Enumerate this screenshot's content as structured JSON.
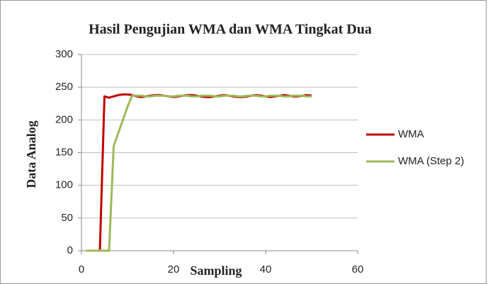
{
  "chart_data": {
    "type": "line",
    "title": "Hasil Pengujian WMA dan WMA Tingkat Dua",
    "x_label": "Sampling",
    "y_label": "Data Analog",
    "x": [
      1,
      2,
      3,
      4,
      5,
      6,
      7,
      8,
      9,
      10,
      11,
      12,
      13,
      14,
      15,
      16,
      17,
      18,
      19,
      20,
      21,
      22,
      23,
      24,
      25,
      26,
      27,
      28,
      29,
      30,
      31,
      32,
      33,
      34,
      35,
      36,
      37,
      38,
      39,
      40,
      41,
      42,
      43,
      44,
      45,
      46,
      47,
      48,
      49,
      50
    ],
    "series": [
      {
        "name": "WMA",
        "color": "#c00000",
        "values": [
          0,
          0,
          0,
          0,
          236,
          234,
          236,
          238,
          239,
          239,
          238,
          236,
          235,
          236,
          237,
          238,
          238,
          237,
          236,
          235,
          236,
          237,
          238,
          238,
          237,
          236,
          235,
          235,
          236,
          237,
          238,
          237,
          236,
          235,
          235,
          236,
          237,
          238,
          237,
          236,
          235,
          236,
          237,
          238,
          237,
          236,
          236,
          237,
          238,
          237
        ]
      },
      {
        "name": "WMA (Step 2)",
        "color": "#9bbb59",
        "values": [
          0,
          0,
          0,
          0,
          0,
          0,
          160,
          180,
          200,
          220,
          237,
          237,
          237,
          236,
          236,
          237,
          237,
          237,
          236,
          236,
          237,
          237,
          237,
          236,
          236,
          237,
          237,
          237,
          236,
          236,
          237,
          237,
          237,
          236,
          236,
          237,
          237,
          237,
          236,
          236,
          237,
          237,
          237,
          236,
          236,
          237,
          237,
          237,
          236,
          236
        ]
      }
    ],
    "xlim": [
      0,
      60
    ],
    "xticks": [
      0,
      20,
      40,
      60
    ],
    "ylim": [
      0,
      300
    ],
    "yticks": [
      0,
      50,
      100,
      150,
      200,
      250,
      300
    ],
    "grid": true,
    "legend": "right"
  }
}
